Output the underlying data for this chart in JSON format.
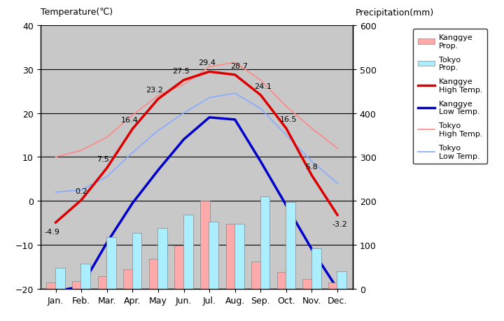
{
  "months": [
    "Jan.",
    "Feb.",
    "Mar.",
    "Apr.",
    "May",
    "Jun.",
    "Jul.",
    "Aug.",
    "Sep.",
    "Oct.",
    "Nov.",
    "Dec."
  ],
  "kanggye_high": [
    -4.9,
    0.2,
    7.5,
    16.4,
    23.2,
    27.5,
    29.4,
    28.7,
    24.1,
    16.5,
    5.8,
    -3.2
  ],
  "kanggye_low": [
    -20.5,
    -19.5,
    -9.5,
    -0.5,
    7.0,
    14.0,
    19.0,
    18.5,
    9.0,
    -1.0,
    -11.0,
    -20.0
  ],
  "tokyo_high": [
    10.0,
    11.5,
    14.5,
    19.5,
    24.0,
    26.5,
    30.5,
    31.5,
    27.5,
    21.5,
    16.5,
    12.0
  ],
  "tokyo_low": [
    2.0,
    2.5,
    5.5,
    11.0,
    16.0,
    20.0,
    23.5,
    24.5,
    21.0,
    15.0,
    9.0,
    4.0
  ],
  "kanggye_precip": [
    15,
    17,
    28,
    45,
    68,
    98,
    200,
    148,
    62,
    38,
    22,
    15
  ],
  "tokyo_precip": [
    48,
    58,
    118,
    128,
    138,
    168,
    153,
    148,
    210,
    197,
    92,
    40
  ],
  "temp_ylim": [
    -20,
    40
  ],
  "precip_ylim": [
    0,
    600
  ],
  "bg_color": "#c8c8c8",
  "kanggye_high_color": "#dd0000",
  "kanggye_low_color": "#0000cc",
  "tokyo_high_color": "#ff8888",
  "tokyo_low_color": "#88aaff",
  "kanggye_precip_color": "#ffaaaa",
  "tokyo_precip_color": "#aaeeff",
  "title_left": "Temperature(℃)",
  "title_right": "Precipitation(mm)",
  "high_labels": [
    "-4.9",
    "0.2",
    "",
    "16.4",
    "23.2",
    "27.5",
    "29.4",
    "28.7",
    "24.1",
    "16.5",
    "5.8",
    "-3.2"
  ],
  "mid_labels": [
    "",
    "",
    "7.5",
    "",
    "",
    "",
    "",
    "",
    "",
    "",
    "",
    ""
  ],
  "figsize": [
    7.2,
    4.6
  ],
  "dpi": 100
}
